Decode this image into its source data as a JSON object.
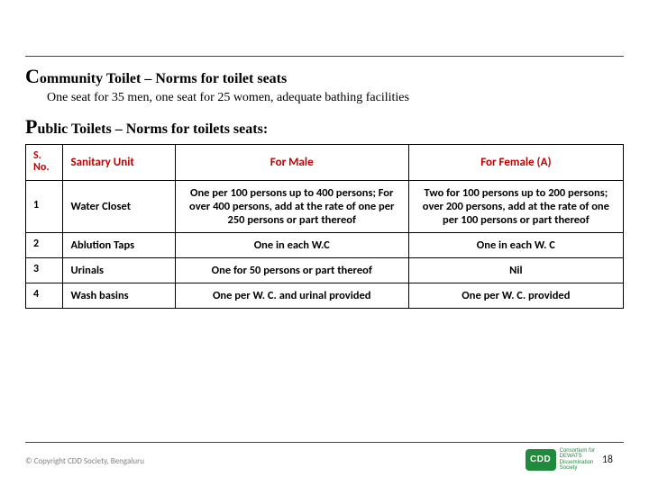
{
  "section1": {
    "dropcap": "C",
    "title_rest": "ommunity Toilet – Norms for toilet seats",
    "body": "One seat for 35 men, one seat for 25 women, adequate bathing facilities"
  },
  "section2": {
    "dropcap": "P",
    "title_rest": "ublic Toilets – Norms for toilets seats:"
  },
  "table": {
    "headers": {
      "sno": "S. No.",
      "unit": "Sanitary Unit",
      "male": "For Male",
      "female": "For Female (A)"
    },
    "header_color": "#c00000",
    "rows": [
      {
        "sno": "1",
        "unit": "Water Closet",
        "male": "One per 100 persons up to 400 persons; For over 400 persons, add at the rate of one per 250 persons or part thereof",
        "female": "Two for 100 persons up to 200 persons; over 200 persons, add at the rate of one per 100 persons or  part thereof"
      },
      {
        "sno": "2",
        "unit": "Ablution Taps",
        "male": "One in each W.C",
        "female": "One in each W. C"
      },
      {
        "sno": "3",
        "unit": "Urinals",
        "male": "One for 50 persons or part thereof",
        "female": "Nil"
      },
      {
        "sno": "4",
        "unit": "Wash basins",
        "male": "One per W. C. and urinal provided",
        "female": "One per W. C. provided"
      }
    ]
  },
  "footer": {
    "copyright": "© Copyright CDD Society, Bengaluru",
    "page": "18",
    "logo_mark": "CDD",
    "logo_text_lines": [
      "Consortium for",
      "DEWATS",
      "Dissemination",
      "Society"
    ]
  },
  "colors": {
    "header_text": "#c00000",
    "body_text": "#000000",
    "rule": "#444444",
    "logo_green": "#1f8a3b",
    "copyright": "#808080",
    "background": "#ffffff"
  }
}
